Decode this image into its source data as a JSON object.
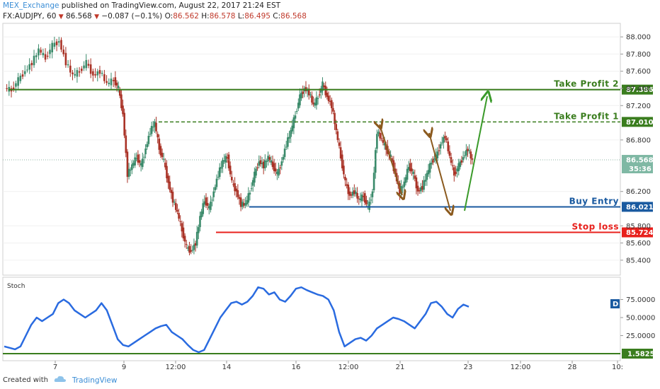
{
  "header": {
    "author": "MEX_Exchange",
    "published": "published on TradingView.com, August 22, 2017 21:24 EST",
    "symbol": "FX:AUDJPY, 60",
    "last": "86.568",
    "change": "−0.087 (−0.1%)",
    "open_label": "O:",
    "open": "86.562",
    "high_label": "H:",
    "high": "86.578",
    "low_label": "L:",
    "low": "86.495",
    "close_label": "C:",
    "close": "86.568"
  },
  "footer": {
    "created_with": "Created with",
    "brand": "TradingView"
  },
  "colors": {
    "green": "#3a7d1e",
    "blue": "#1a5aa0",
    "red": "#e8201c",
    "brown": "#8b5a1e",
    "stoch": "#2a6be0",
    "bull": "#3a8a6a",
    "bear": "#a93226"
  },
  "chart_data": [
    {
      "type": "candlestick",
      "symbol": "FX:AUDJPY",
      "timeframe": "60",
      "ylim": [
        85.3,
        88.1
      ],
      "y_ticks": [
        "88.000",
        "87.800",
        "87.600",
        "87.400",
        "87.200",
        "86.800",
        "86.200",
        "85.800",
        "85.600",
        "85.400"
      ],
      "x_ticks": [
        "7",
        "9",
        "12:00",
        "14",
        "16",
        "12:00",
        "21",
        "23",
        "12:00",
        "28",
        "10:"
      ],
      "levels": [
        {
          "name": "Take Profit 2",
          "value": 87.386,
          "label": "87.386",
          "style": "solid"
        },
        {
          "name": "Take Profit 1",
          "value": 87.01,
          "label": "87.010",
          "style": "dashed"
        },
        {
          "name": "Buy Entry",
          "value": 86.021,
          "label": "86.021",
          "style": "solid"
        },
        {
          "name": "Stop loss",
          "value": 85.724,
          "label": "85.724",
          "style": "solid"
        }
      ],
      "current_price": {
        "value": 86.568,
        "label": "86.568",
        "countdown": "35:36"
      },
      "price_path": [
        [
          0,
          87.4
        ],
        [
          6,
          87.38
        ],
        [
          12,
          87.5
        ],
        [
          18,
          87.6
        ],
        [
          24,
          87.7
        ],
        [
          30,
          87.85
        ],
        [
          36,
          87.75
        ],
        [
          42,
          87.9
        ],
        [
          48,
          87.95
        ],
        [
          54,
          87.7
        ],
        [
          60,
          87.55
        ],
        [
          66,
          87.6
        ],
        [
          72,
          87.7
        ],
        [
          78,
          87.55
        ],
        [
          84,
          87.6
        ],
        [
          90,
          87.45
        ],
        [
          96,
          87.5
        ],
        [
          100,
          87.4
        ],
        [
          104,
          87.1
        ],
        [
          108,
          86.4
        ],
        [
          112,
          86.5
        ],
        [
          116,
          86.6
        ],
        [
          120,
          86.5
        ],
        [
          124,
          86.7
        ],
        [
          128,
          86.9
        ],
        [
          132,
          87.0
        ],
        [
          136,
          86.7
        ],
        [
          140,
          86.55
        ],
        [
          144,
          86.3
        ],
        [
          148,
          86.1
        ],
        [
          152,
          85.95
        ],
        [
          156,
          85.75
        ],
        [
          160,
          85.55
        ],
        [
          164,
          85.5
        ],
        [
          168,
          85.6
        ],
        [
          172,
          85.9
        ],
        [
          176,
          86.1
        ],
        [
          180,
          86.0
        ],
        [
          184,
          86.2
        ],
        [
          188,
          86.4
        ],
        [
          192,
          86.55
        ],
        [
          196,
          86.6
        ],
        [
          200,
          86.3
        ],
        [
          204,
          86.2
        ],
        [
          208,
          86.05
        ],
        [
          212,
          86.05
        ],
        [
          216,
          86.2
        ],
        [
          220,
          86.4
        ],
        [
          224,
          86.55
        ],
        [
          228,
          86.5
        ],
        [
          232,
          86.6
        ],
        [
          236,
          86.5
        ],
        [
          240,
          86.4
        ],
        [
          244,
          86.55
        ],
        [
          248,
          86.75
        ],
        [
          252,
          86.9
        ],
        [
          256,
          87.1
        ],
        [
          260,
          87.3
        ],
        [
          264,
          87.4
        ],
        [
          268,
          87.35
        ],
        [
          272,
          87.2
        ],
        [
          276,
          87.3
        ],
        [
          280,
          87.45
        ],
        [
          284,
          87.3
        ],
        [
          288,
          87.2
        ],
        [
          292,
          86.9
        ],
        [
          296,
          86.6
        ],
        [
          300,
          86.3
        ],
        [
          304,
          86.15
        ],
        [
          308,
          86.2
        ],
        [
          312,
          86.1
        ],
        [
          316,
          86.15
        ],
        [
          320,
          86.0
        ],
        [
          324,
          86.2
        ],
        [
          328,
          86.9
        ],
        [
          332,
          86.8
        ],
        [
          336,
          86.7
        ],
        [
          340,
          86.6
        ],
        [
          344,
          86.4
        ],
        [
          348,
          86.2
        ],
        [
          352,
          86.3
        ],
        [
          356,
          86.5
        ],
        [
          360,
          86.4
        ],
        [
          364,
          86.2
        ],
        [
          368,
          86.25
        ],
        [
          372,
          86.4
        ],
        [
          376,
          86.55
        ],
        [
          380,
          86.6
        ],
        [
          384,
          86.75
        ],
        [
          388,
          86.85
        ],
        [
          392,
          86.6
        ],
        [
          396,
          86.4
        ],
        [
          400,
          86.5
        ],
        [
          404,
          86.6
        ],
        [
          408,
          86.7
        ],
        [
          412,
          86.55
        ]
      ],
      "path_x_range": [
        0,
        412
      ]
    },
    {
      "type": "line",
      "title": "Stoch",
      "ylim": [
        0,
        100
      ],
      "y_ticks": [
        "75.0000",
        "50.0000",
        "25.0000"
      ],
      "last_value_label": "D",
      "baseline_label": "1.5825",
      "series": [
        {
          "values": [
            10,
            8,
            6,
            10,
            25,
            40,
            50,
            45,
            50,
            55,
            70,
            75,
            70,
            60,
            55,
            50,
            55,
            60,
            70,
            60,
            40,
            20,
            12,
            10,
            15,
            20,
            25,
            30,
            35,
            38,
            40,
            30,
            25,
            20,
            12,
            5,
            2,
            5,
            20,
            35,
            50,
            60,
            70,
            72,
            68,
            72,
            80,
            92,
            90,
            82,
            85,
            75,
            72,
            80,
            90,
            92,
            88,
            85,
            82,
            80,
            75,
            60,
            30,
            10,
            15,
            20,
            22,
            18,
            25,
            35,
            40,
            45,
            50,
            48,
            45,
            40,
            35,
            45,
            55,
            70,
            72,
            65,
            55,
            50,
            62,
            68,
            65
          ]
        }
      ]
    }
  ]
}
